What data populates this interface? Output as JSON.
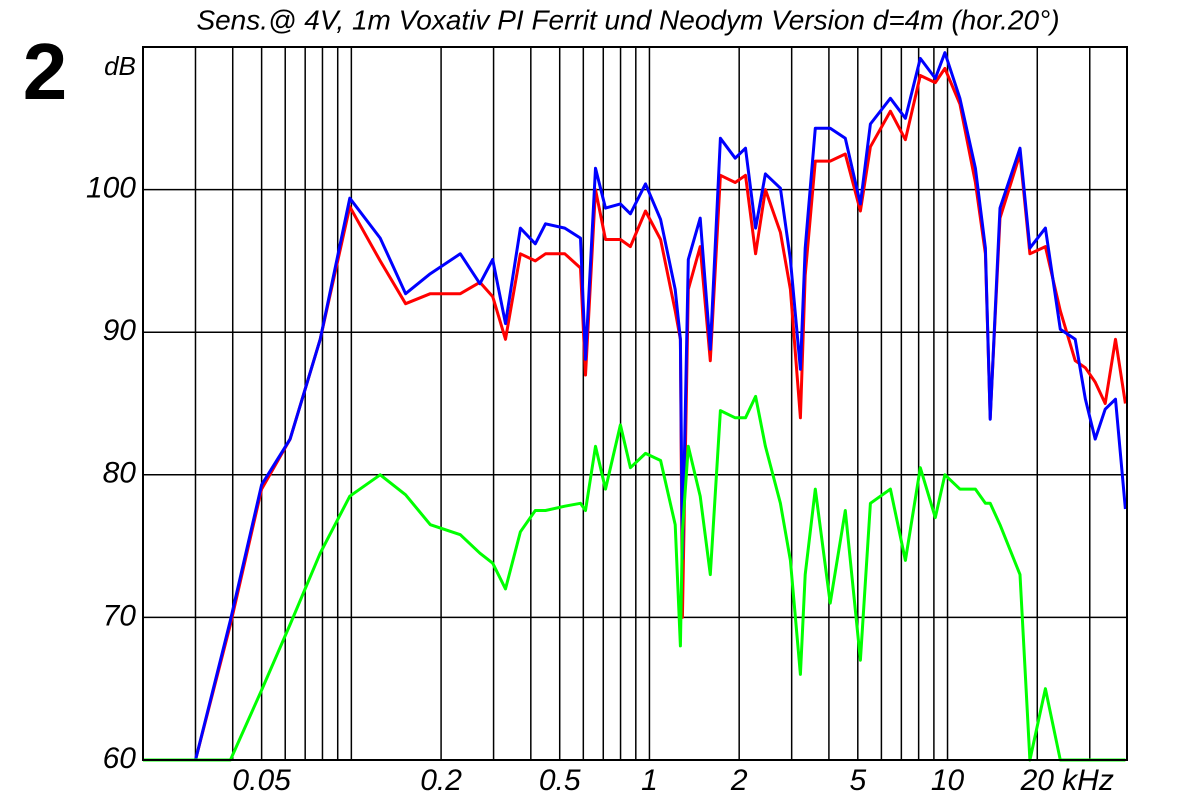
{
  "chart_data": {
    "type": "line",
    "panel_label": "2",
    "title": "Sens.@ 4V, 1m Voxativ PI Ferrit und Neodym Version d=4m (hor.20°)",
    "y_label": "dB",
    "x_label": "kHz",
    "log_x": true,
    "grid": true,
    "xlim": [
      0.02,
      40
    ],
    "ylim": [
      60,
      110
    ],
    "xticks": [
      0.05,
      0.2,
      0.5,
      1,
      2,
      5,
      10,
      20
    ],
    "xgrid": [
      0.03,
      0.04,
      0.06,
      0.07,
      0.08,
      0.09,
      0.1,
      0.3,
      0.4,
      0.6,
      0.7,
      0.8,
      0.9,
      3,
      4,
      6,
      7,
      8,
      9,
      30
    ],
    "yticks": [
      60,
      70,
      80,
      90,
      100
    ],
    "x": [
      0.02,
      0.03,
      0.0393,
      0.05,
      0.0623,
      0.0786,
      0.0988,
      0.125,
      0.152,
      0.184,
      0.232,
      0.27,
      0.298,
      0.329,
      0.369,
      0.414,
      0.448,
      0.52,
      0.587,
      0.61,
      0.659,
      0.712,
      0.799,
      0.863,
      0.97,
      1.09,
      1.22,
      1.27,
      1.29,
      1.35,
      1.48,
      1.6,
      1.73,
      1.94,
      2.1,
      2.27,
      2.45,
      2.75,
      2.97,
      3.21,
      3.33,
      3.6,
      4.04,
      4.54,
      5.1,
      5.51,
      6.43,
      7.22,
      8.1,
      9.1,
      9.8,
      11,
      12.4,
      13.4,
      13.9,
      15,
      17.5,
      18.9,
      21.3,
      23.9,
      26.8,
      29,
      31.3,
      33.8,
      36.6,
      39.5
    ],
    "series": [
      {
        "color": "#ff0000",
        "values": [
          null,
          60,
          69.5,
          79,
          82.5,
          89.5,
          98.8,
          95,
          92,
          92.7,
          92.7,
          93.5,
          92.5,
          89.5,
          95.5,
          95,
          95.5,
          95.5,
          94.5,
          87,
          100,
          96.5,
          96.5,
          96,
          98.5,
          96.5,
          91.5,
          89.5,
          70,
          93,
          96,
          88,
          101,
          100.5,
          101,
          95.5,
          100,
          97,
          93,
          84,
          94,
          102,
          102,
          102.5,
          98.5,
          103,
          105.5,
          103.5,
          108,
          107.5,
          108.5,
          106,
          100.5,
          95.5,
          84,
          98,
          102.5,
          95.5,
          96,
          91.5,
          88,
          87.5,
          86.5,
          85,
          89.5,
          85
        ]
      },
      {
        "color": "#0000ff",
        "values": [
          null,
          60,
          69.8,
          79.3,
          82.5,
          89.5,
          99.4,
          96.6,
          92.7,
          94.1,
          95.5,
          93.4,
          95.1,
          90.6,
          97.3,
          96.2,
          97.6,
          97.3,
          96.6,
          88.1,
          101.5,
          98.7,
          99,
          98.3,
          100.4,
          97.9,
          93,
          89.5,
          74.1,
          95.1,
          98,
          88.8,
          103.6,
          102.2,
          102.9,
          97.3,
          101.1,
          100.1,
          95.1,
          87.4,
          95.9,
          104.3,
          104.3,
          103.6,
          99,
          104.6,
          106.4,
          105,
          109.2,
          107.8,
          109.6,
          106.4,
          101.5,
          95.9,
          83.9,
          98.7,
          102.9,
          95.9,
          97.3,
          90.2,
          89.5,
          85.3,
          82.5,
          84.6,
          85.3,
          77.6
        ]
      },
      {
        "color": "#00ff00",
        "values": [
          60,
          60,
          60,
          64.9,
          69.5,
          74.5,
          78.5,
          80,
          78.6,
          76.5,
          75.8,
          74.5,
          73.8,
          72,
          76,
          77.5,
          77.5,
          77.8,
          78,
          77.5,
          82,
          79,
          83.5,
          80.5,
          81.5,
          81,
          76.5,
          68,
          76,
          82,
          78.5,
          73,
          84.5,
          84,
          84,
          85.5,
          82,
          78,
          74,
          66,
          73,
          79,
          71,
          77.5,
          67,
          78,
          79,
          74,
          80.5,
          77,
          80,
          79,
          79,
          78,
          78,
          76.5,
          73,
          60,
          65,
          60,
          60,
          60,
          60,
          60,
          60,
          60
        ]
      }
    ]
  }
}
